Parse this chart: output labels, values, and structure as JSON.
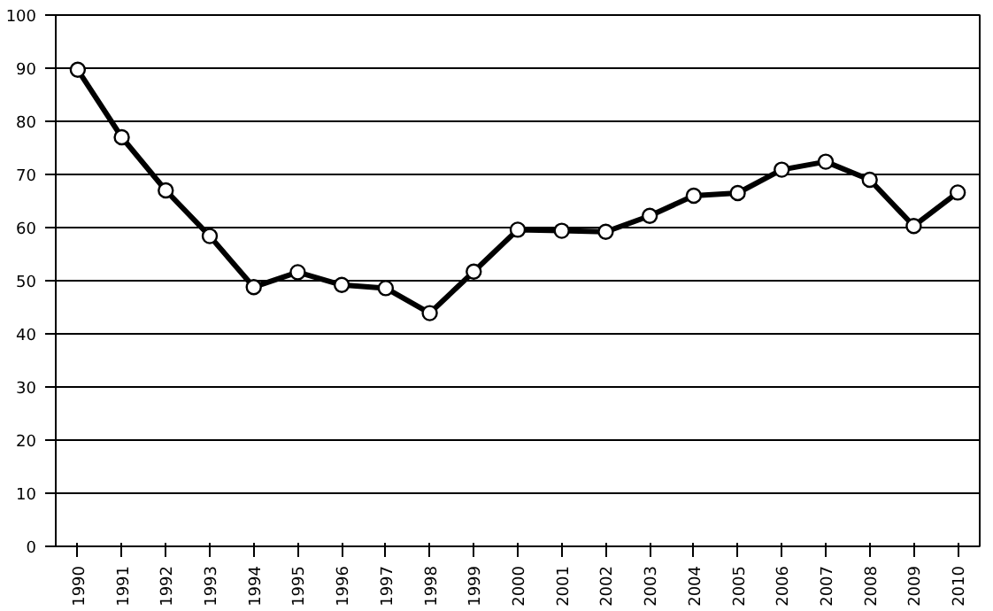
{
  "chart_data": {
    "type": "line",
    "categories": [
      "1990",
      "1991",
      "1992",
      "1993",
      "1994",
      "1995",
      "1996",
      "1997",
      "1998",
      "1999",
      "2000",
      "2001",
      "2002",
      "2003",
      "2004",
      "2005",
      "2006",
      "2007",
      "2008",
      "2009",
      "2010"
    ],
    "series": [
      {
        "color": "#000000",
        "values": [
          89.7,
          77,
          67,
          58.4,
          48.8,
          51.6,
          49.2,
          48.6,
          43.9,
          51.7,
          59.6,
          59.4,
          59.2,
          62.2,
          66,
          66.5,
          70.9,
          72.4,
          69,
          60.3,
          66.6
        ]
      }
    ],
    "ylim": [
      0,
      100
    ],
    "yticks": [
      0,
      10,
      20,
      30,
      40,
      50,
      60,
      70,
      80,
      90,
      100
    ],
    "grid": "y",
    "marker": "circle",
    "line_style": "solid"
  }
}
